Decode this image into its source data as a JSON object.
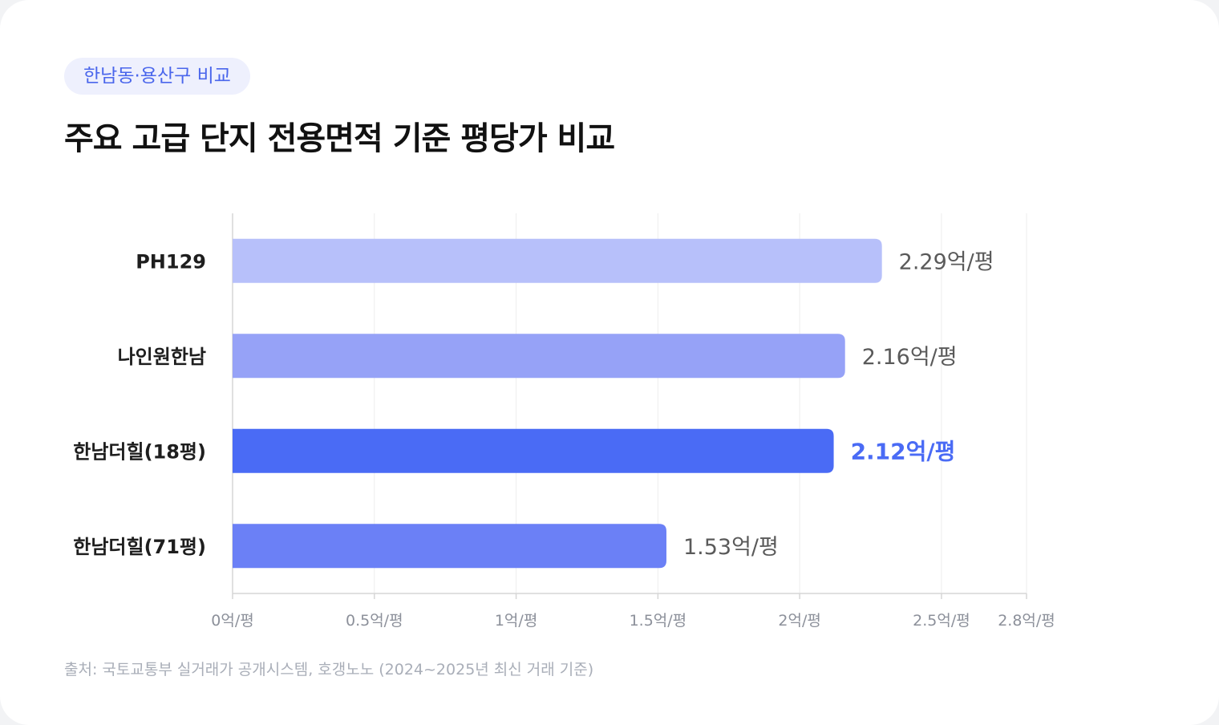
{
  "badge": "한남동·용산구 비교",
  "title": "주요 고급 단지 전용면적 기준 평당가 비교",
  "source": "출처: 국토교통부 실거래가 공개시스템, 호갱노노 (2024~2025년 최신 거래 기준)",
  "chart_data": {
    "type": "bar",
    "orientation": "horizontal",
    "categories": [
      "PH129",
      "나인원한남",
      "한남더힐(18평)",
      "한남더힐(71평)"
    ],
    "values": [
      2.29,
      2.16,
      2.12,
      1.53
    ],
    "value_labels": [
      "2.29억/평",
      "2.16억/평",
      "2.12억/평",
      "1.53억/평"
    ],
    "colors": [
      "#b7c0fa",
      "#96a2f7",
      "#4a6bf5",
      "#6b80f6"
    ],
    "highlight_index": 2,
    "highlight_color": "#4a6bf5",
    "value_label_color": "#5a5a5a",
    "xlim": [
      0,
      2.8
    ],
    "xticks": [
      0,
      0.5,
      1,
      1.5,
      2,
      2.5,
      2.8
    ],
    "xtick_labels": [
      "0억/평",
      "0.5억/평",
      "1억/평",
      "1.5억/평",
      "2억/평",
      "2.5억/평",
      "2.8억/평"
    ],
    "grid": true
  }
}
